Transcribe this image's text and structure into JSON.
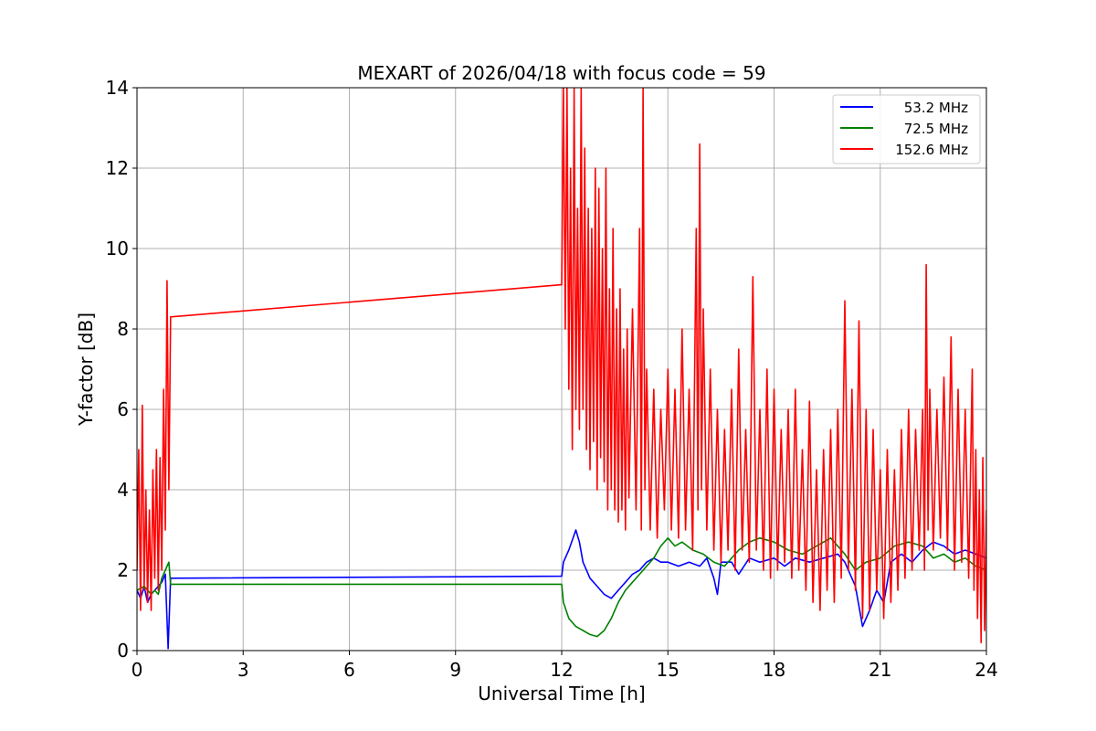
{
  "chart_data": {
    "type": "line",
    "title": "MEXART of 2026/04/18 with focus code = 59",
    "xlabel": "Universal Time [h]",
    "ylabel": "Y-factor [dB]",
    "xlim": [
      0,
      24
    ],
    "ylim": [
      0,
      14
    ],
    "xticks": [
      0,
      3,
      6,
      9,
      12,
      15,
      18,
      21,
      24
    ],
    "yticks": [
      0,
      2,
      4,
      6,
      8,
      10,
      12,
      14
    ],
    "xtick_labels": [
      "0",
      "3",
      "6",
      "9",
      "12",
      "15",
      "18",
      "21",
      "24"
    ],
    "ytick_labels": [
      "0",
      "2",
      "4",
      "6",
      "8",
      "10",
      "12",
      "14"
    ],
    "grid": true,
    "legend_position": "top-right",
    "series": [
      {
        "name": "53.2 MHz",
        "color": "#0000ff",
        "points": [
          [
            0.0,
            1.5
          ],
          [
            0.1,
            1.3
          ],
          [
            0.2,
            1.6
          ],
          [
            0.3,
            1.2
          ],
          [
            0.4,
            1.4
          ],
          [
            0.5,
            1.5
          ],
          [
            0.6,
            1.6
          ],
          [
            0.7,
            1.7
          ],
          [
            0.8,
            1.9
          ],
          [
            0.88,
            0.05
          ],
          [
            0.95,
            1.8
          ],
          [
            12.0,
            1.85
          ],
          [
            12.05,
            2.2
          ],
          [
            12.2,
            2.5
          ],
          [
            12.4,
            3.0
          ],
          [
            12.5,
            2.7
          ],
          [
            12.6,
            2.2
          ],
          [
            12.8,
            1.8
          ],
          [
            13.0,
            1.6
          ],
          [
            13.2,
            1.4
          ],
          [
            13.4,
            1.3
          ],
          [
            13.6,
            1.5
          ],
          [
            13.8,
            1.7
          ],
          [
            14.0,
            1.9
          ],
          [
            14.2,
            2.0
          ],
          [
            14.4,
            2.2
          ],
          [
            14.6,
            2.3
          ],
          [
            14.8,
            2.2
          ],
          [
            15.0,
            2.2
          ],
          [
            15.3,
            2.1
          ],
          [
            15.6,
            2.2
          ],
          [
            15.9,
            2.1
          ],
          [
            16.1,
            2.3
          ],
          [
            16.3,
            1.8
          ],
          [
            16.4,
            1.4
          ],
          [
            16.5,
            2.2
          ],
          [
            16.8,
            2.2
          ],
          [
            17.0,
            1.9
          ],
          [
            17.3,
            2.3
          ],
          [
            17.6,
            2.2
          ],
          [
            18.0,
            2.3
          ],
          [
            18.3,
            2.1
          ],
          [
            18.6,
            2.3
          ],
          [
            19.0,
            2.2
          ],
          [
            19.4,
            2.3
          ],
          [
            19.8,
            2.4
          ],
          [
            20.0,
            2.2
          ],
          [
            20.3,
            1.6
          ],
          [
            20.5,
            0.6
          ],
          [
            20.7,
            1.0
          ],
          [
            20.9,
            1.5
          ],
          [
            21.1,
            1.2
          ],
          [
            21.3,
            2.2
          ],
          [
            21.6,
            2.4
          ],
          [
            21.9,
            2.2
          ],
          [
            22.2,
            2.5
          ],
          [
            22.5,
            2.7
          ],
          [
            22.8,
            2.6
          ],
          [
            23.1,
            2.4
          ],
          [
            23.4,
            2.5
          ],
          [
            23.7,
            2.4
          ],
          [
            24.0,
            2.3
          ]
        ]
      },
      {
        "name": "72.5 MHz",
        "color": "#008000",
        "points": [
          [
            0.0,
            1.5
          ],
          [
            0.2,
            1.6
          ],
          [
            0.4,
            1.4
          ],
          [
            0.5,
            1.5
          ],
          [
            0.6,
            1.4
          ],
          [
            0.7,
            1.8
          ],
          [
            0.8,
            2.0
          ],
          [
            0.9,
            2.2
          ],
          [
            0.95,
            1.65
          ],
          [
            12.0,
            1.65
          ],
          [
            12.05,
            1.2
          ],
          [
            12.2,
            0.8
          ],
          [
            12.4,
            0.6
          ],
          [
            12.6,
            0.5
          ],
          [
            12.8,
            0.4
          ],
          [
            13.0,
            0.35
          ],
          [
            13.2,
            0.5
          ],
          [
            13.4,
            0.8
          ],
          [
            13.6,
            1.2
          ],
          [
            13.8,
            1.5
          ],
          [
            14.0,
            1.7
          ],
          [
            14.2,
            1.9
          ],
          [
            14.4,
            2.1
          ],
          [
            14.6,
            2.3
          ],
          [
            14.8,
            2.6
          ],
          [
            15.0,
            2.8
          ],
          [
            15.2,
            2.6
          ],
          [
            15.4,
            2.7
          ],
          [
            15.7,
            2.5
          ],
          [
            16.0,
            2.4
          ],
          [
            16.3,
            2.2
          ],
          [
            16.6,
            2.1
          ],
          [
            17.0,
            2.5
          ],
          [
            17.3,
            2.7
          ],
          [
            17.6,
            2.8
          ],
          [
            18.0,
            2.7
          ],
          [
            18.4,
            2.5
          ],
          [
            18.8,
            2.4
          ],
          [
            19.2,
            2.6
          ],
          [
            19.6,
            2.8
          ],
          [
            20.0,
            2.4
          ],
          [
            20.3,
            2.0
          ],
          [
            20.6,
            2.2
          ],
          [
            21.0,
            2.3
          ],
          [
            21.4,
            2.6
          ],
          [
            21.8,
            2.7
          ],
          [
            22.2,
            2.6
          ],
          [
            22.5,
            2.3
          ],
          [
            22.8,
            2.4
          ],
          [
            23.1,
            2.2
          ],
          [
            23.4,
            2.3
          ],
          [
            23.7,
            2.1
          ],
          [
            24.0,
            2.0
          ]
        ]
      },
      {
        "name": "152.6 MHz",
        "color": "#ff0000",
        "points": [
          [
            0.0,
            2.0
          ],
          [
            0.05,
            5.0
          ],
          [
            0.1,
            1.0
          ],
          [
            0.15,
            6.1
          ],
          [
            0.2,
            1.5
          ],
          [
            0.25,
            4.0
          ],
          [
            0.3,
            1.2
          ],
          [
            0.35,
            3.5
          ],
          [
            0.4,
            1.0
          ],
          [
            0.45,
            4.5
          ],
          [
            0.5,
            1.8
          ],
          [
            0.55,
            5.0
          ],
          [
            0.6,
            1.5
          ],
          [
            0.65,
            4.8
          ],
          [
            0.7,
            2.0
          ],
          [
            0.75,
            6.5
          ],
          [
            0.8,
            3.0
          ],
          [
            0.85,
            9.2
          ],
          [
            0.9,
            4.0
          ],
          [
            0.95,
            8.3
          ],
          [
            12.0,
            9.1
          ],
          [
            12.05,
            14.0
          ],
          [
            12.1,
            8.0
          ],
          [
            12.15,
            14.0
          ],
          [
            12.2,
            6.5
          ],
          [
            12.25,
            12.0
          ],
          [
            12.3,
            5.0
          ],
          [
            12.35,
            14.0
          ],
          [
            12.4,
            6.0
          ],
          [
            12.45,
            11.0
          ],
          [
            12.5,
            5.5
          ],
          [
            12.55,
            14.0
          ],
          [
            12.6,
            6.0
          ],
          [
            12.65,
            12.5
          ],
          [
            12.7,
            5.0
          ],
          [
            12.75,
            11.0
          ],
          [
            12.8,
            4.5
          ],
          [
            12.85,
            10.5
          ],
          [
            12.9,
            5.2
          ],
          [
            12.95,
            12.0
          ],
          [
            13.0,
            4.0
          ],
          [
            13.05,
            11.5
          ],
          [
            13.1,
            4.8
          ],
          [
            13.15,
            10.0
          ],
          [
            13.2,
            4.2
          ],
          [
            13.25,
            12.0
          ],
          [
            13.3,
            3.5
          ],
          [
            13.35,
            9.0
          ],
          [
            13.4,
            4.0
          ],
          [
            13.45,
            10.5
          ],
          [
            13.5,
            3.5
          ],
          [
            13.55,
            8.5
          ],
          [
            13.6,
            3.2
          ],
          [
            13.65,
            9.0
          ],
          [
            13.7,
            3.5
          ],
          [
            13.75,
            7.5
          ],
          [
            13.8,
            3.0
          ],
          [
            13.85,
            8.0
          ],
          [
            13.9,
            3.8
          ],
          [
            14.0,
            8.5
          ],
          [
            14.1,
            3.5
          ],
          [
            14.2,
            10.5
          ],
          [
            14.25,
            3.0
          ],
          [
            14.3,
            14.0
          ],
          [
            14.35,
            4.0
          ],
          [
            14.4,
            7.0
          ],
          [
            14.5,
            3.0
          ],
          [
            14.6,
            6.5
          ],
          [
            14.7,
            2.8
          ],
          [
            14.8,
            6.0
          ],
          [
            14.9,
            3.5
          ],
          [
            15.0,
            7.0
          ],
          [
            15.1,
            3.0
          ],
          [
            15.2,
            6.5
          ],
          [
            15.3,
            2.8
          ],
          [
            15.4,
            8.0
          ],
          [
            15.5,
            3.0
          ],
          [
            15.6,
            6.5
          ],
          [
            15.7,
            2.5
          ],
          [
            15.8,
            10.5
          ],
          [
            15.85,
            3.5
          ],
          [
            15.9,
            12.6
          ],
          [
            15.95,
            4.0
          ],
          [
            16.0,
            8.5
          ],
          [
            16.1,
            3.0
          ],
          [
            16.2,
            7.0
          ],
          [
            16.3,
            2.5
          ],
          [
            16.4,
            6.0
          ],
          [
            16.5,
            2.2
          ],
          [
            16.6,
            5.5
          ],
          [
            16.7,
            2.5
          ],
          [
            16.8,
            6.5
          ],
          [
            16.9,
            2.0
          ],
          [
            17.0,
            7.5
          ],
          [
            17.1,
            2.5
          ],
          [
            17.2,
            5.5
          ],
          [
            17.3,
            2.2
          ],
          [
            17.4,
            9.3
          ],
          [
            17.5,
            2.5
          ],
          [
            17.6,
            6.0
          ],
          [
            17.7,
            2.0
          ],
          [
            17.8,
            7.0
          ],
          [
            17.9,
            1.8
          ],
          [
            18.0,
            6.5
          ],
          [
            18.1,
            2.0
          ],
          [
            18.2,
            5.5
          ],
          [
            18.3,
            2.2
          ],
          [
            18.4,
            6.0
          ],
          [
            18.5,
            1.8
          ],
          [
            18.6,
            6.5
          ],
          [
            18.7,
            2.0
          ],
          [
            18.8,
            5.0
          ],
          [
            18.9,
            1.5
          ],
          [
            19.0,
            6.2
          ],
          [
            19.1,
            1.2
          ],
          [
            19.2,
            4.5
          ],
          [
            19.3,
            1.0
          ],
          [
            19.4,
            5.0
          ],
          [
            19.5,
            1.5
          ],
          [
            19.6,
            5.5
          ],
          [
            19.7,
            1.2
          ],
          [
            19.8,
            6.0
          ],
          [
            19.9,
            1.8
          ],
          [
            20.0,
            8.7
          ],
          [
            20.1,
            2.0
          ],
          [
            20.2,
            6.5
          ],
          [
            20.3,
            1.5
          ],
          [
            20.4,
            8.2
          ],
          [
            20.5,
            0.8
          ],
          [
            20.6,
            6.0
          ],
          [
            20.7,
            1.0
          ],
          [
            20.8,
            5.5
          ],
          [
            20.9,
            1.5
          ],
          [
            21.0,
            4.5
          ],
          [
            21.1,
            0.8
          ],
          [
            21.2,
            5.0
          ],
          [
            21.3,
            1.2
          ],
          [
            21.4,
            4.5
          ],
          [
            21.5,
            1.5
          ],
          [
            21.6,
            5.5
          ],
          [
            21.7,
            1.8
          ],
          [
            21.8,
            6.0
          ],
          [
            21.9,
            2.0
          ],
          [
            22.0,
            5.5
          ],
          [
            22.1,
            2.5
          ],
          [
            22.2,
            6.0
          ],
          [
            22.25,
            2.0
          ],
          [
            22.3,
            9.6
          ],
          [
            22.35,
            3.0
          ],
          [
            22.4,
            6.5
          ],
          [
            22.5,
            2.5
          ],
          [
            22.6,
            6.0
          ],
          [
            22.7,
            2.8
          ],
          [
            22.8,
            6.8
          ],
          [
            22.9,
            2.5
          ],
          [
            23.0,
            7.8
          ],
          [
            23.1,
            2.0
          ],
          [
            23.2,
            6.5
          ],
          [
            23.3,
            2.2
          ],
          [
            23.4,
            6.0
          ],
          [
            23.5,
            1.8
          ],
          [
            23.6,
            7.0
          ],
          [
            23.65,
            1.5
          ],
          [
            23.7,
            5.0
          ],
          [
            23.75,
            0.8
          ],
          [
            23.8,
            4.0
          ],
          [
            23.85,
            0.2
          ],
          [
            23.9,
            4.8
          ],
          [
            23.95,
            0.5
          ],
          [
            24.0,
            3.5
          ]
        ]
      }
    ]
  }
}
